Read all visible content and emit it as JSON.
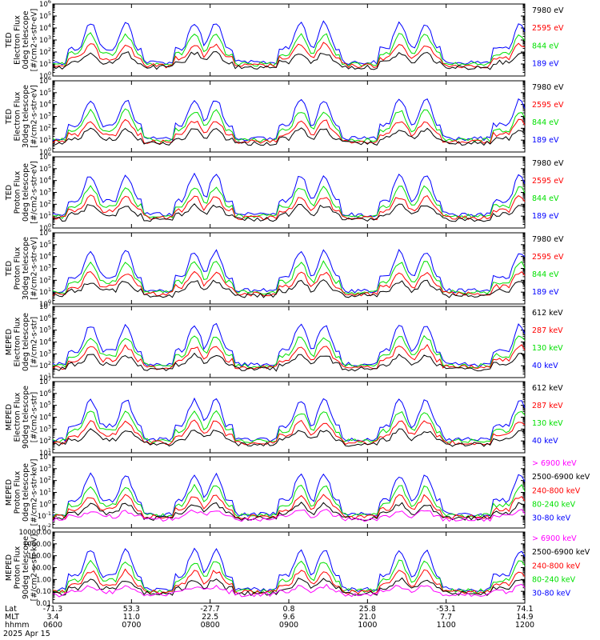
{
  "colors": {
    "blue": "#0000ff",
    "red": "#ff0000",
    "green": "#00e000",
    "black": "#000000",
    "magenta": "#ff00ff"
  },
  "chart_data": [
    {
      "type": "line",
      "scale": "log",
      "ylim_exp": [
        0,
        6
      ],
      "ylabel": [
        "TED",
        "Electron Flux",
        "0deg telescope",
        "[#/cm2-s-str-eV]"
      ],
      "legend": [
        {
          "name": "7980 eV",
          "color": "black"
        },
        {
          "name": "2595 eV",
          "color": "red"
        },
        {
          "name": "844 eV",
          "color": "green"
        },
        {
          "name": "189 eV",
          "color": "blue"
        }
      ]
    },
    {
      "type": "line",
      "scale": "log",
      "ylim_exp": [
        0,
        6
      ],
      "ylabel": [
        "TED",
        "Electron Flux",
        "30deg telescope",
        "[#/cm2-s-str-eV]"
      ],
      "legend": [
        {
          "name": "7980 eV",
          "color": "black"
        },
        {
          "name": "2595 eV",
          "color": "red"
        },
        {
          "name": "844 eV",
          "color": "green"
        },
        {
          "name": "189 eV",
          "color": "blue"
        }
      ]
    },
    {
      "type": "line",
      "scale": "log",
      "ylim_exp": [
        0,
        6
      ],
      "ylabel": [
        "TED",
        "Proton Flux",
        "0deg telescope",
        "[#/cm2-s-str-eV]"
      ],
      "legend": [
        {
          "name": "7980 eV",
          "color": "black"
        },
        {
          "name": "2595 eV",
          "color": "red"
        },
        {
          "name": "844 eV",
          "color": "green"
        },
        {
          "name": "189 eV",
          "color": "blue"
        }
      ]
    },
    {
      "type": "line",
      "scale": "log",
      "ylim_exp": [
        0,
        6
      ],
      "ylabel": [
        "TED",
        "Proton Flux",
        "30deg telescope",
        "[#/cm2-s-str-eV]"
      ],
      "legend": [
        {
          "name": "7980 eV",
          "color": "black"
        },
        {
          "name": "2595 eV",
          "color": "red"
        },
        {
          "name": "844 eV",
          "color": "green"
        },
        {
          "name": "189 eV",
          "color": "blue"
        }
      ]
    },
    {
      "type": "line",
      "scale": "log",
      "ylim_exp": [
        1,
        7
      ],
      "ylabel": [
        "MEPED",
        "Electron Flux",
        "0deg telescope",
        "[#/cm2-s-str]"
      ],
      "legend": [
        {
          "name": "612 keV",
          "color": "black"
        },
        {
          "name": "287 keV",
          "color": "red"
        },
        {
          "name": "130 keV",
          "color": "green"
        },
        {
          "name": "40 keV",
          "color": "blue"
        }
      ]
    },
    {
      "type": "line",
      "scale": "log",
      "ylim_exp": [
        1,
        7
      ],
      "ylabel": [
        "MEPED",
        "Electron Flux",
        "90deg telescope",
        "[#/cm2-s-str]"
      ],
      "legend": [
        {
          "name": "612 keV",
          "color": "black"
        },
        {
          "name": "287 keV",
          "color": "red"
        },
        {
          "name": "130 keV",
          "color": "green"
        },
        {
          "name": "40 keV",
          "color": "blue"
        }
      ]
    },
    {
      "type": "line",
      "scale": "log",
      "ylim_exp": [
        -2,
        4
      ],
      "ylabel": [
        "MEPED",
        "Proton Flux",
        "0deg telescope",
        "[#/cm2-s-str-keV]"
      ],
      "legend": [
        {
          "name": "> 6900 keV",
          "color": "magenta"
        },
        {
          "name": "2500-6900 keV",
          "color": "black"
        },
        {
          "name": "240-800 keV",
          "color": "red"
        },
        {
          "name": "80-240 keV",
          "color": "green"
        },
        {
          "name": "30-80 keV",
          "color": "blue"
        }
      ]
    },
    {
      "type": "line",
      "scale": "log",
      "ylim_exp": [
        -2,
        4
      ],
      "yticks": [
        "0.01",
        "0.10",
        "1.00",
        "10.00",
        "100.00",
        "1000.00",
        "10000.00"
      ],
      "ylabel": [
        "MEPED",
        "Proton Flux",
        "90deg telescope",
        "[#/cm2-s-str-keV]"
      ],
      "legend": [
        {
          "name": "> 6900 keV",
          "color": "magenta"
        },
        {
          "name": "2500-6900 keV",
          "color": "black"
        },
        {
          "name": "240-800 keV",
          "color": "red"
        },
        {
          "name": "80-240 keV",
          "color": "green"
        },
        {
          "name": "30-80 keV",
          "color": "blue"
        }
      ]
    }
  ],
  "x_axis": {
    "row_labels": [
      "Lat",
      "MLT",
      "hhmm"
    ],
    "ticks": [
      {
        "lat": "-71.3",
        "mlt": "3.4",
        "hhmm": "0600"
      },
      {
        "lat": "53.3",
        "mlt": "11.0",
        "hhmm": "0700"
      },
      {
        "lat": "-27.7",
        "mlt": "22.5",
        "hhmm": "0800"
      },
      {
        "lat": "0.8",
        "mlt": "9.6",
        "hhmm": "0900"
      },
      {
        "lat": "25.8",
        "mlt": "21.0",
        "hhmm": "1000"
      },
      {
        "lat": "-53.1",
        "mlt": "7.7",
        "hhmm": "1100"
      },
      {
        "lat": "74.1",
        "mlt": "14.9",
        "hhmm": "1200"
      }
    ],
    "date": "2025 Apr 15"
  }
}
